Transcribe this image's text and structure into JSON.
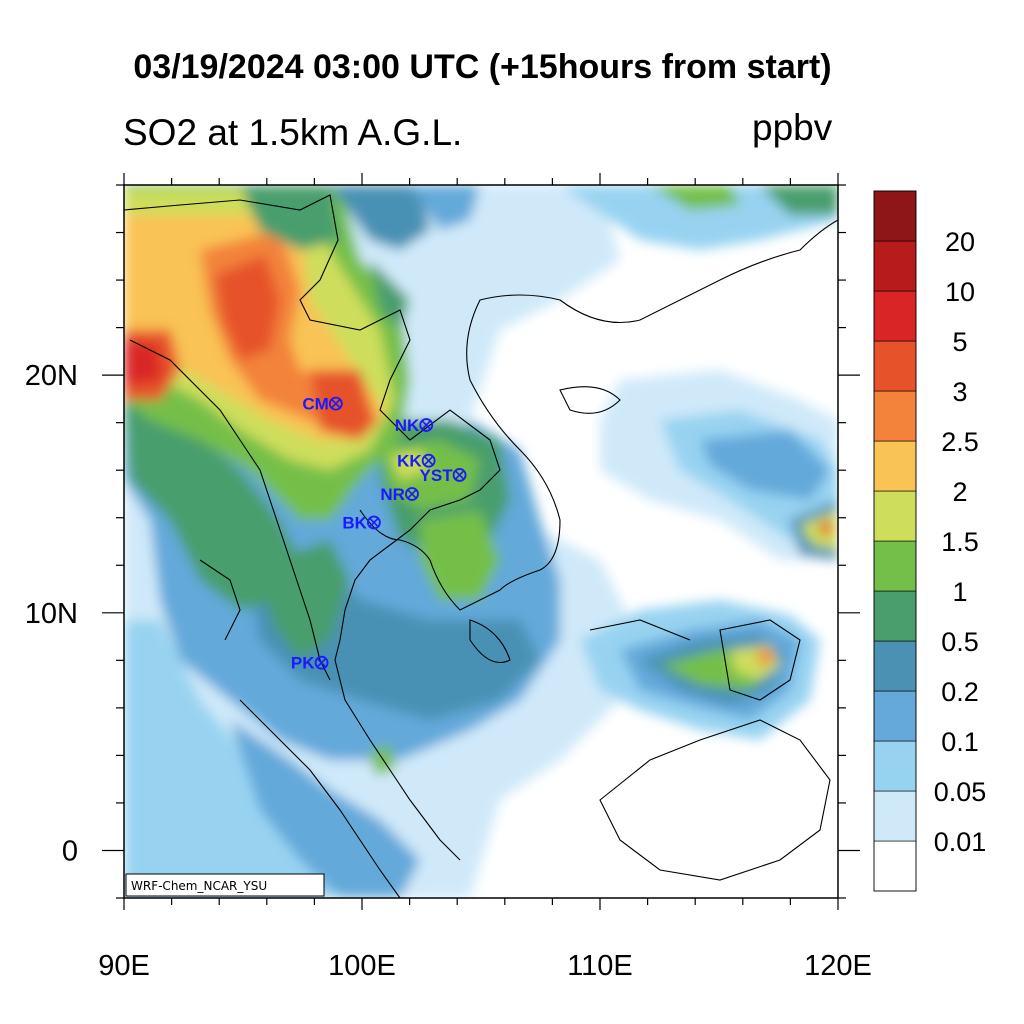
{
  "title": "03/19/2024 03:00 UTC (+15hours from start)",
  "subtitle": "SO2 at 1.5km A.G.L.",
  "units": "ppbv",
  "credit": "WRF-Chem_NCAR_YSU",
  "map": {
    "lon_range": [
      90,
      120
    ],
    "lat_range": [
      -2,
      28
    ],
    "x_ticks": [
      {
        "lon": 90,
        "label": "90E"
      },
      {
        "lon": 100,
        "label": "100E"
      },
      {
        "lon": 110,
        "label": "110E"
      },
      {
        "lon": 120,
        "label": "120E"
      }
    ],
    "y_ticks": [
      {
        "lat": 0,
        "label": "0"
      },
      {
        "lat": 10,
        "label": "10N"
      },
      {
        "lat": 20,
        "label": "20N"
      }
    ]
  },
  "sites": [
    {
      "label": "CM",
      "lon": 98.9,
      "lat": 18.8
    },
    {
      "label": "NK",
      "lon": 102.7,
      "lat": 17.9
    },
    {
      "label": "KK",
      "lon": 102.8,
      "lat": 16.4
    },
    {
      "label": "YST",
      "lon": 104.1,
      "lat": 15.8
    },
    {
      "label": "NR",
      "lon": 102.1,
      "lat": 15.0
    },
    {
      "label": "BK",
      "lon": 100.5,
      "lat": 13.8
    },
    {
      "label": "PK",
      "lon": 98.3,
      "lat": 7.9
    }
  ],
  "colorbar": {
    "colors": [
      "#ffffff",
      "#cfe9f9",
      "#97d3f1",
      "#64a9da",
      "#4a91b4",
      "#4a9e6d",
      "#74bf49",
      "#cede5c",
      "#f9c355",
      "#f3833a",
      "#e6522a",
      "#d92525",
      "#b81b1b",
      "#8e1518"
    ],
    "labels": [
      "0.01",
      "0.05",
      "0.1",
      "0.2",
      "0.5",
      "1",
      "1.5",
      "2",
      "2.5",
      "3",
      "5",
      "10",
      "20"
    ]
  }
}
